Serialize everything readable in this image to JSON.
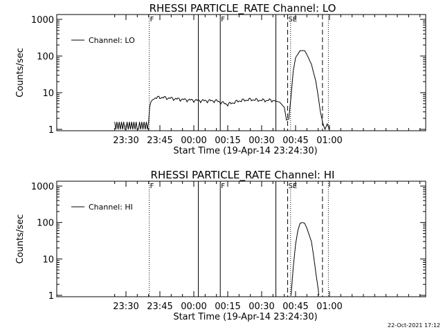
{
  "timestamp": "22-Oct-2021 17:12",
  "chart_data": [
    {
      "type": "line",
      "title": "RHESSI PARTICLE_RATE Channel: LO",
      "xlabel": "Start Time (19-Apr-14 23:24:30)",
      "ylabel": "Counts/sec",
      "yscale": "log",
      "ylim": [
        1,
        1000
      ],
      "yticks": [
        "1",
        "10",
        "100",
        "1000"
      ],
      "xlim_minutes": [
        23.4,
        24.55
      ],
      "x_tick_labels": [
        "23:30",
        "23:45",
        "00:00",
        "00:15",
        "00:30",
        "00:45",
        "01:00"
      ],
      "x_tick_times": [
        "23:30",
        "23:45",
        "00:00",
        "00:15",
        "00:30",
        "00:45",
        "01:00"
      ],
      "legend": {
        "label": "Channel: LO",
        "position": "top-left"
      },
      "flags": [
        "F",
        "F",
        "SE"
      ],
      "vertical_lines": [
        {
          "time": "23:40.3",
          "style": "dotted",
          "flag": "F"
        },
        {
          "time": "00:02.0",
          "style": "solid"
        },
        {
          "time": "00:11.7",
          "style": "solid",
          "flag": "F"
        },
        {
          "time": "00:36.3",
          "style": "solid"
        },
        {
          "time": "00:41.5",
          "style": "dashed",
          "flag": "SE"
        },
        {
          "time": "00:42.8",
          "style": "dotted"
        },
        {
          "time": "00:56.9",
          "style": "dashed"
        },
        {
          "time": "00:59.5",
          "style": "dotted"
        }
      ],
      "series": [
        {
          "name": "Channel: LO",
          "points": [
            [
              "23:25",
              1
            ],
            [
              "23:26",
              1
            ],
            [
              "23:27",
              1.6
            ],
            [
              "23:28",
              1
            ],
            [
              "23:29",
              1.6
            ],
            [
              "23:30",
              1
            ],
            [
              "23:31",
              1.6
            ],
            [
              "23:32",
              1
            ],
            [
              "23:33",
              1.6
            ],
            [
              "23:34",
              1
            ],
            [
              "23:35",
              1
            ],
            [
              "23:36",
              1.6
            ],
            [
              "23:37",
              1.8
            ],
            [
              "23:38",
              2.2
            ],
            [
              "23:39",
              2.8
            ],
            [
              "23:40",
              3.2
            ],
            [
              "23:41",
              5.5
            ],
            [
              "23:42",
              7
            ],
            [
              "23:45",
              7.5
            ],
            [
              "23:50",
              7
            ],
            [
              "23:55",
              6.5
            ],
            [
              "00:00",
              6.2
            ],
            [
              "00:05",
              6
            ],
            [
              "00:10",
              6
            ],
            [
              "00:15",
              4.8
            ],
            [
              "00:20",
              6
            ],
            [
              "00:25",
              6.5
            ],
            [
              "00:30",
              6.2
            ],
            [
              "00:35",
              6.2
            ],
            [
              "00:38",
              5.5
            ],
            [
              "00:40",
              4
            ],
            [
              "00:41",
              1.8
            ],
            [
              "00:42",
              1.9
            ],
            [
              "00:43",
              8
            ],
            [
              "00:44",
              40
            ],
            [
              "00:45",
              90
            ],
            [
              "00:47",
              140
            ],
            [
              "00:49",
              140
            ],
            [
              "00:50",
              110
            ],
            [
              "00:52",
              60
            ],
            [
              "00:54",
              20
            ],
            [
              "00:55",
              8
            ],
            [
              "00:56",
              3
            ],
            [
              "00:57",
              1.5
            ],
            [
              "00:58",
              1
            ],
            [
              "00:59",
              1.4
            ],
            [
              "01:00",
              1
            ]
          ]
        }
      ]
    },
    {
      "type": "line",
      "title": "RHESSI PARTICLE_RATE Channel: HI",
      "xlabel": "Start Time (19-Apr-14 23:24:30)",
      "ylabel": "Counts/sec",
      "yscale": "log",
      "ylim": [
        1,
        1000
      ],
      "yticks": [
        "1",
        "10",
        "100",
        "1000"
      ],
      "x_tick_labels": [
        "23:30",
        "23:45",
        "00:00",
        "00:15",
        "00:30",
        "00:45",
        "01:00"
      ],
      "x_tick_times": [
        "23:30",
        "23:45",
        "00:00",
        "00:15",
        "00:30",
        "00:45",
        "01:00"
      ],
      "legend": {
        "label": "Channel: HI",
        "position": "top-left"
      },
      "flags": [
        "F",
        "F",
        "SE"
      ],
      "vertical_lines": [
        {
          "time": "23:40.3",
          "style": "dotted",
          "flag": "F"
        },
        {
          "time": "00:02.0",
          "style": "solid"
        },
        {
          "time": "00:11.7",
          "style": "solid",
          "flag": "F"
        },
        {
          "time": "00:36.3",
          "style": "solid"
        },
        {
          "time": "00:41.5",
          "style": "dashed",
          "flag": "SE"
        },
        {
          "time": "00:42.8",
          "style": "dotted"
        },
        {
          "time": "00:56.9",
          "style": "dashed"
        },
        {
          "time": "00:59.5",
          "style": "dotted"
        }
      ],
      "series": [
        {
          "name": "Channel: HI",
          "points": [
            [
              "00:43",
              1
            ],
            [
              "00:44",
              6
            ],
            [
              "00:45",
              25
            ],
            [
              "00:46",
              60
            ],
            [
              "00:47",
              95
            ],
            [
              "00:48",
              100
            ],
            [
              "00:49",
              95
            ],
            [
              "00:50",
              70
            ],
            [
              "00:52",
              30
            ],
            [
              "00:53",
              12
            ],
            [
              "00:54",
              4
            ],
            [
              "00:55",
              1.5
            ],
            [
              "00:55.3",
              1
            ]
          ]
        }
      ]
    }
  ]
}
